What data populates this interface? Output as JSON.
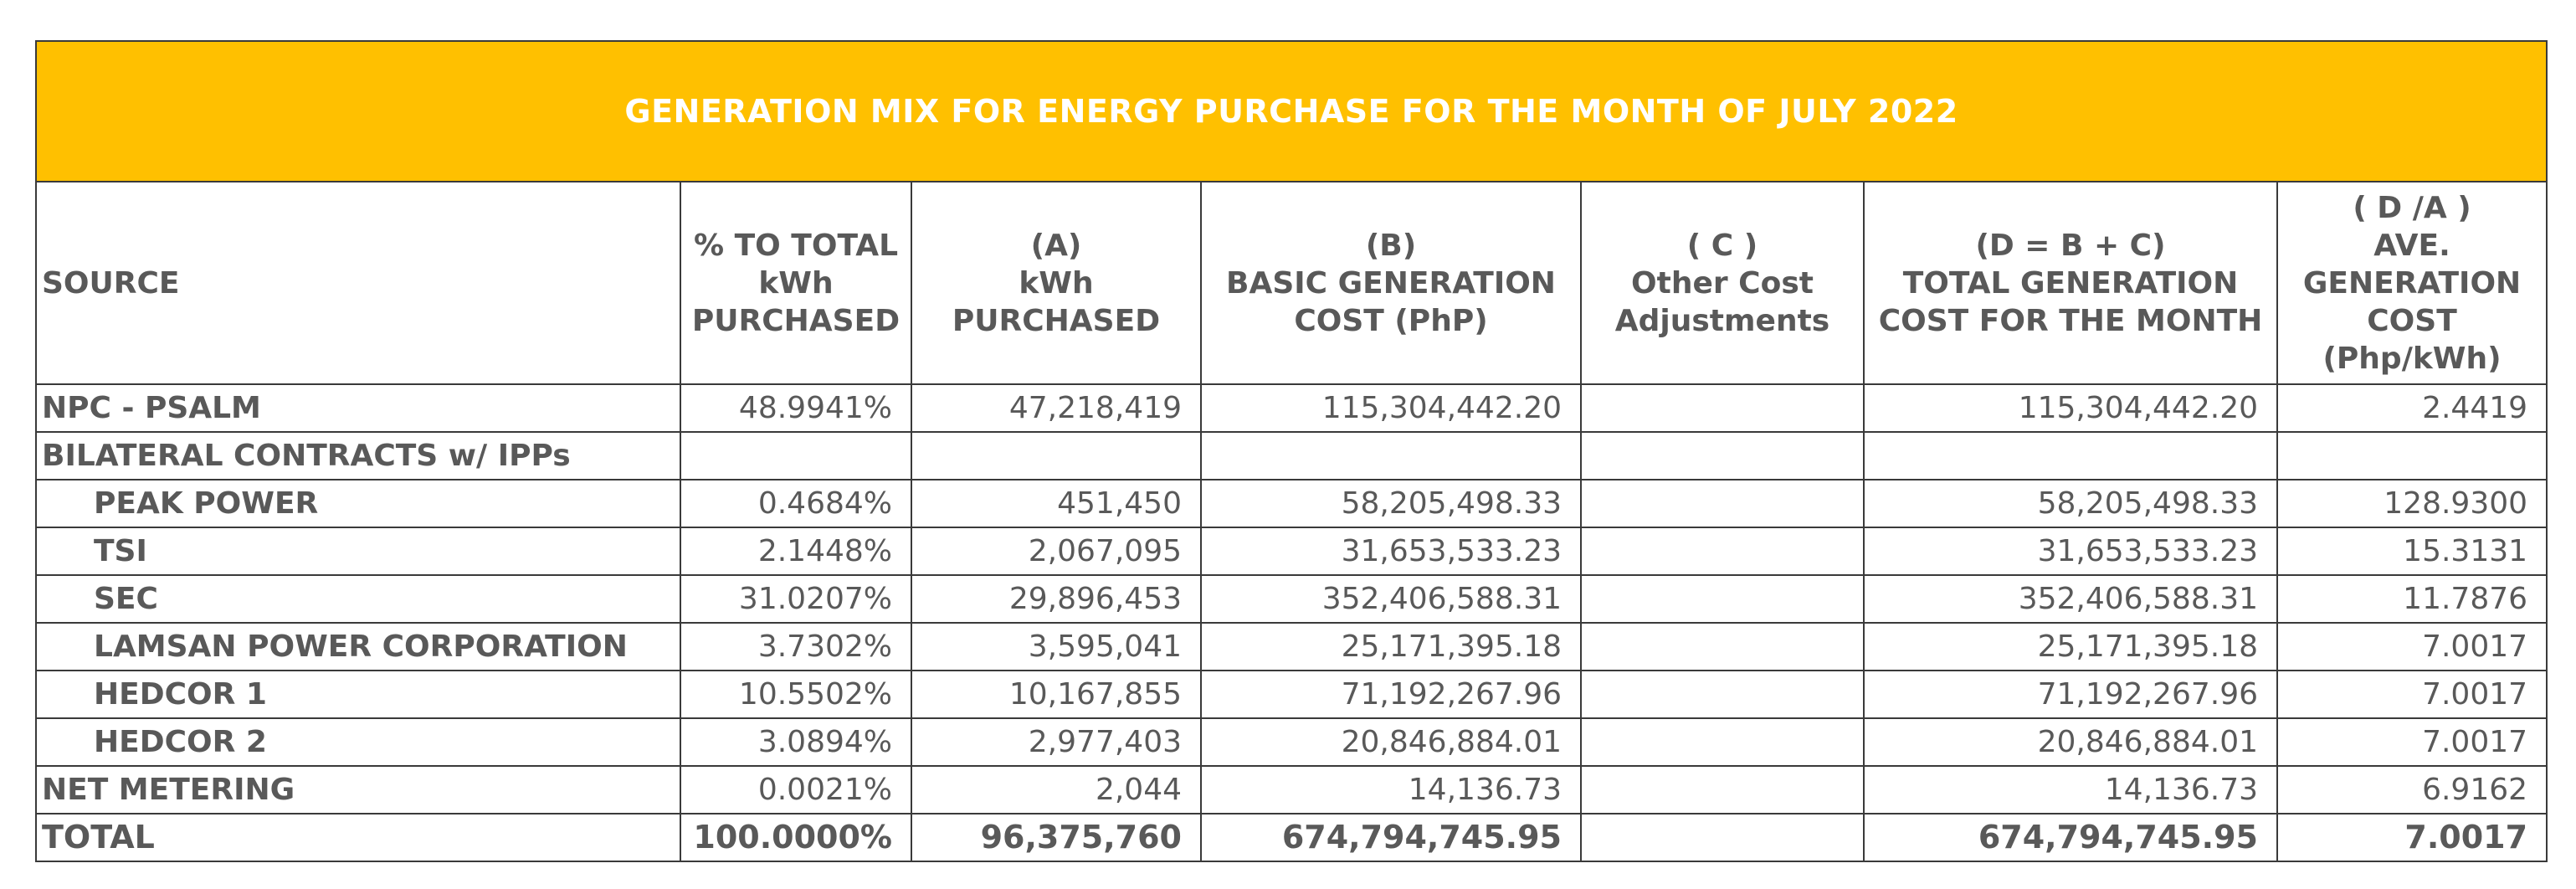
{
  "title": "GENERATION MIX FOR ENERGY PURCHASE FOR THE MONTH OF JULY 2022",
  "colors": {
    "title_bg": "#ffc000",
    "title_text": "#ffffff",
    "text": "#595959"
  },
  "headers": {
    "source": [
      "SOURCE"
    ],
    "pct": [
      "% TO TOTAL",
      "kWh",
      "PURCHASED"
    ],
    "kwh": [
      "(A)",
      "kWh",
      "PURCHASED"
    ],
    "basic": [
      "(B)",
      "BASIC GENERATION",
      "COST (PhP)"
    ],
    "other": [
      "( C )",
      "Other Cost",
      "Adjustments"
    ],
    "total": [
      "(D = B + C)",
      "TOTAL GENERATION",
      "COST FOR THE MONTH"
    ],
    "ave": [
      "( D /A )",
      "AVE.",
      "GENERATION",
      "COST",
      "(Php/kWh)"
    ]
  },
  "rows": [
    {
      "source": "NPC - PSALM",
      "pct": "48.9941%",
      "kwh": "47,218,419",
      "basic": "115,304,442.20",
      "other": "",
      "total": "115,304,442.20",
      "ave": "2.4419"
    },
    {
      "source": "BILATERAL CONTRACTS w/ IPPs",
      "pct": "",
      "kwh": "",
      "basic": "",
      "other": "",
      "total": "",
      "ave": ""
    },
    {
      "source": "PEAK POWER",
      "pct": "0.4684%",
      "kwh": "451,450",
      "basic": "58,205,498.33",
      "other": "",
      "total": "58,205,498.33",
      "ave": "128.9300"
    },
    {
      "source": "TSI",
      "pct": "2.1448%",
      "kwh": "2,067,095",
      "basic": "31,653,533.23",
      "other": "",
      "total": "31,653,533.23",
      "ave": "15.3131"
    },
    {
      "source": "SEC",
      "pct": "31.0207%",
      "kwh": "29,896,453",
      "basic": "352,406,588.31",
      "other": "",
      "total": "352,406,588.31",
      "ave": "11.7876"
    },
    {
      "source": "LAMSAN POWER CORPORATION",
      "pct": "3.7302%",
      "kwh": "3,595,041",
      "basic": "25,171,395.18",
      "other": "",
      "total": "25,171,395.18",
      "ave": "7.0017"
    },
    {
      "source": "HEDCOR 1",
      "pct": "10.5502%",
      "kwh": "10,167,855",
      "basic": "71,192,267.96",
      "other": "",
      "total": "71,192,267.96",
      "ave": "7.0017"
    },
    {
      "source": "HEDCOR 2",
      "pct": "3.0894%",
      "kwh": "2,977,403",
      "basic": "20,846,884.01",
      "other": "",
      "total": "20,846,884.01",
      "ave": "7.0017"
    },
    {
      "source": "NET METERING",
      "pct": "0.0021%",
      "kwh": "2,044",
      "basic": "14,136.73",
      "other": "",
      "total": "14,136.73",
      "ave": "6.9162"
    }
  ],
  "total_row": {
    "source": "TOTAL",
    "pct": "100.0000%",
    "kwh": "96,375,760",
    "basic": "674,794,745.95",
    "other": "",
    "total": "674,794,745.95",
    "ave": "7.0017"
  }
}
